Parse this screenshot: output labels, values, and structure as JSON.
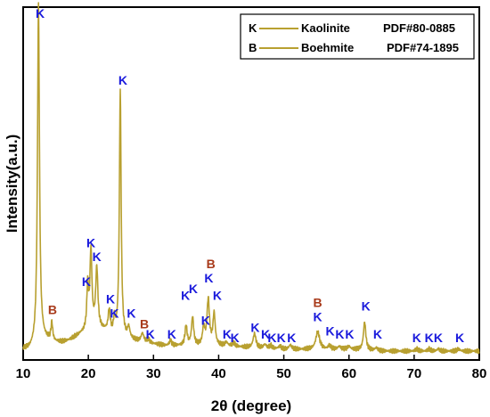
{
  "chart_data": {
    "type": "line",
    "xlabel": "2θ (degree)",
    "ylabel": "Intensity(a.u.)",
    "xlim": [
      10,
      80
    ],
    "xticks": [
      10,
      20,
      30,
      40,
      50,
      60,
      70,
      80
    ],
    "y_ticks_shown": false,
    "grid": false,
    "line_color": "#b8a030",
    "label_colors": {
      "K": "#1a1adc",
      "B": "#a83a1a"
    },
    "legend": {
      "placement": "top-right",
      "entries": [
        {
          "symbol": "K",
          "name": "Kaolinite",
          "pdf": "PDF#80-0885"
        },
        {
          "symbol": "B",
          "name": "Boehmite",
          "pdf": "PDF#74-1895"
        }
      ]
    },
    "baseline": [
      [
        10,
        0.03
      ],
      [
        11,
        0.03
      ],
      [
        12,
        0.04
      ],
      [
        13,
        0.055
      ],
      [
        14,
        0.055
      ],
      [
        15,
        0.05
      ],
      [
        16,
        0.05
      ],
      [
        17,
        0.055
      ],
      [
        18,
        0.065
      ],
      [
        19,
        0.075
      ],
      [
        20,
        0.085
      ],
      [
        21,
        0.09
      ],
      [
        22,
        0.085
      ],
      [
        23,
        0.08
      ],
      [
        24,
        0.07
      ],
      [
        25,
        0.065
      ],
      [
        26,
        0.06
      ],
      [
        27,
        0.055
      ],
      [
        28,
        0.05
      ],
      [
        30,
        0.045
      ],
      [
        32,
        0.04
      ],
      [
        35,
        0.04
      ],
      [
        40,
        0.04
      ],
      [
        45,
        0.035
      ],
      [
        50,
        0.03
      ],
      [
        55,
        0.03
      ],
      [
        60,
        0.03
      ],
      [
        65,
        0.025
      ],
      [
        70,
        0.025
      ],
      [
        75,
        0.025
      ],
      [
        80,
        0.025
      ]
    ],
    "peaks": [
      {
        "x": 12.35,
        "height": 0.96,
        "width": 0.18
      },
      {
        "x": 14.4,
        "height": 0.05,
        "width": 0.15
      },
      {
        "x": 19.9,
        "height": 0.12,
        "width": 0.15
      },
      {
        "x": 20.4,
        "height": 0.22,
        "width": 0.18
      },
      {
        "x": 21.3,
        "height": 0.17,
        "width": 0.2
      },
      {
        "x": 23.2,
        "height": 0.06,
        "width": 0.18
      },
      {
        "x": 24.0,
        "height": 0.04,
        "width": 0.15
      },
      {
        "x": 24.9,
        "height": 0.7,
        "width": 0.16
      },
      {
        "x": 26.2,
        "height": 0.03,
        "width": 0.2
      },
      {
        "x": 28.3,
        "height": 0.025,
        "width": 0.25
      },
      {
        "x": 29.2,
        "height": 0.01,
        "width": 0.25
      },
      {
        "x": 32.6,
        "height": 0.015,
        "width": 0.2
      },
      {
        "x": 35.0,
        "height": 0.055,
        "width": 0.2
      },
      {
        "x": 36.0,
        "height": 0.08,
        "width": 0.2
      },
      {
        "x": 37.7,
        "height": 0.05,
        "width": 0.2
      },
      {
        "x": 38.4,
        "height": 0.13,
        "width": 0.22
      },
      {
        "x": 39.3,
        "height": 0.09,
        "width": 0.2
      },
      {
        "x": 41.2,
        "height": 0.01,
        "width": 0.25
      },
      {
        "x": 42.3,
        "height": 0.01,
        "width": 0.25
      },
      {
        "x": 45.5,
        "height": 0.04,
        "width": 0.25
      },
      {
        "x": 47.1,
        "height": 0.01,
        "width": 0.25
      },
      {
        "x": 48.0,
        "height": 0.008,
        "width": 0.25
      },
      {
        "x": 49.4,
        "height": 0.008,
        "width": 0.25
      },
      {
        "x": 51.0,
        "height": 0.012,
        "width": 0.25
      },
      {
        "x": 55.2,
        "height": 0.05,
        "width": 0.35
      },
      {
        "x": 57.0,
        "height": 0.01,
        "width": 0.25
      },
      {
        "x": 58.5,
        "height": 0.008,
        "width": 0.25
      },
      {
        "x": 60.0,
        "height": 0.008,
        "width": 0.25
      },
      {
        "x": 62.4,
        "height": 0.08,
        "width": 0.22
      },
      {
        "x": 64.2,
        "height": 0.008,
        "width": 0.25
      },
      {
        "x": 70.4,
        "height": 0.006,
        "width": 0.25
      },
      {
        "x": 72.3,
        "height": 0.006,
        "width": 0.25
      },
      {
        "x": 73.7,
        "height": 0.006,
        "width": 0.25
      },
      {
        "x": 76.8,
        "height": 0.006,
        "width": 0.25
      }
    ],
    "annotations": [
      {
        "text": "K",
        "x": 12.6,
        "y": 0.97
      },
      {
        "text": "B",
        "x": 14.5,
        "y": 0.13
      },
      {
        "text": "K",
        "x": 19.7,
        "y": 0.21
      },
      {
        "text": "K",
        "x": 20.4,
        "y": 0.32
      },
      {
        "text": "K",
        "x": 21.3,
        "y": 0.28
      },
      {
        "text": "K",
        "x": 23.4,
        "y": 0.16
      },
      {
        "text": "K",
        "x": 24.0,
        "y": 0.12
      },
      {
        "text": "K",
        "x": 25.3,
        "y": 0.78
      },
      {
        "text": "K",
        "x": 26.6,
        "y": 0.12
      },
      {
        "text": "B",
        "x": 28.6,
        "y": 0.09
      },
      {
        "text": "K",
        "x": 29.5,
        "y": 0.06
      },
      {
        "text": "K",
        "x": 32.8,
        "y": 0.06
      },
      {
        "text": "K",
        "x": 34.9,
        "y": 0.17
      },
      {
        "text": "K",
        "x": 36.1,
        "y": 0.19
      },
      {
        "text": "K",
        "x": 38.0,
        "y": 0.1
      },
      {
        "text": "B",
        "x": 38.8,
        "y": 0.26
      },
      {
        "text": "K",
        "x": 38.5,
        "y": 0.22
      },
      {
        "text": "K",
        "x": 39.8,
        "y": 0.17
      },
      {
        "text": "K",
        "x": 41.3,
        "y": 0.06
      },
      {
        "text": "K",
        "x": 42.5,
        "y": 0.05
      },
      {
        "text": "K",
        "x": 45.6,
        "y": 0.08
      },
      {
        "text": "K",
        "x": 47.2,
        "y": 0.06
      },
      {
        "text": "K",
        "x": 48.2,
        "y": 0.05
      },
      {
        "text": "K",
        "x": 49.6,
        "y": 0.05
      },
      {
        "text": "K",
        "x": 51.2,
        "y": 0.05
      },
      {
        "text": "B",
        "x": 55.2,
        "y": 0.15
      },
      {
        "text": "K",
        "x": 55.2,
        "y": 0.11
      },
      {
        "text": "K",
        "x": 57.1,
        "y": 0.07
      },
      {
        "text": "K",
        "x": 58.6,
        "y": 0.06
      },
      {
        "text": "K",
        "x": 60.1,
        "y": 0.06
      },
      {
        "text": "K",
        "x": 62.6,
        "y": 0.14
      },
      {
        "text": "K",
        "x": 64.4,
        "y": 0.06
      },
      {
        "text": "K",
        "x": 70.4,
        "y": 0.05
      },
      {
        "text": "K",
        "x": 72.3,
        "y": 0.05
      },
      {
        "text": "K",
        "x": 73.7,
        "y": 0.05
      },
      {
        "text": "K",
        "x": 77.0,
        "y": 0.05
      }
    ]
  }
}
